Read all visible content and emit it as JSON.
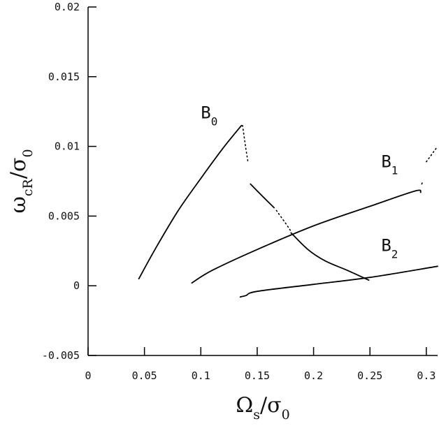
{
  "chart_data": {
    "type": "line",
    "title": "",
    "xlabel": {
      "main": "Ω",
      "sub": "s",
      "slash": "/",
      "denom": "σ",
      "denom_sub": "0"
    },
    "ylabel": {
      "main": "ω",
      "sub": "cR",
      "slash": "/",
      "denom": "σ",
      "denom_sub": "0"
    },
    "xlim": [
      0,
      0.31
    ],
    "ylim": [
      -0.005,
      0.02
    ],
    "xticks": [
      0,
      0.05,
      0.1,
      0.15,
      0.2,
      0.25,
      0.3
    ],
    "xtick_labels": [
      "0",
      "0.05",
      "0.1",
      "0.15",
      "0.2",
      "0.25",
      "0.3"
    ],
    "yticks": [
      -0.005,
      0,
      0.005,
      0.01,
      0.015,
      0.02
    ],
    "ytick_labels": [
      "-0.005",
      "0",
      "0.005",
      "0.01",
      "0.015",
      "0.02"
    ],
    "grid": false,
    "legend": "none",
    "annotations": [
      {
        "text": "B",
        "sub": "0",
        "x": 0.1,
        "y": 0.012
      },
      {
        "text": "B",
        "sub": "1",
        "x": 0.26,
        "y": 0.0085
      },
      {
        "text": "B",
        "sub": "2",
        "x": 0.26,
        "y": 0.0025
      }
    ],
    "series": [
      {
        "segments": [
          {
            "style": "solid",
            "points": [
              [
                0.045,
                0.0005
              ],
              [
                0.06,
                0.0027
              ],
              [
                0.08,
                0.0054
              ],
              [
                0.1,
                0.0077
              ],
              [
                0.12,
                0.0099
              ],
              [
                0.136,
                0.0115
              ]
            ]
          },
          {
            "style": "dotted",
            "points": [
              [
                0.137,
                0.0115
              ],
              [
                0.14,
                0.0098
              ],
              [
                0.142,
                0.0088
              ]
            ]
          },
          {
            "style": "solid",
            "points": [
              [
                0.144,
                0.0073
              ],
              [
                0.155,
                0.0064
              ],
              [
                0.165,
                0.0056
              ]
            ]
          },
          {
            "style": "dotted",
            "points": [
              [
                0.167,
                0.0054
              ],
              [
                0.175,
                0.0045
              ],
              [
                0.18,
                0.0039
              ]
            ]
          },
          {
            "style": "solid",
            "points": [
              [
                0.18,
                0.0038
              ],
              [
                0.195,
                0.0026
              ],
              [
                0.21,
                0.0018
              ],
              [
                0.23,
                0.0011
              ],
              [
                0.249,
                0.0004
              ]
            ]
          }
        ]
      },
      {
        "segments": [
          {
            "style": "solid",
            "points": [
              [
                0.092,
                0.0002
              ],
              [
                0.11,
                0.0011
              ],
              [
                0.15,
                0.0026
              ],
              [
                0.2,
                0.0043
              ],
              [
                0.25,
                0.0057
              ],
              [
                0.29,
                0.0068
              ],
              [
                0.295,
                0.0067
              ]
            ]
          },
          {
            "style": "dotted",
            "points": [
              [
                0.296,
                0.0073
              ],
              [
                0.297,
                0.0075
              ]
            ]
          },
          {
            "style": "dotted",
            "points": [
              [
                0.3,
                0.0089
              ],
              [
                0.31,
                0.01
              ]
            ]
          }
        ]
      },
      {
        "segments": [
          {
            "style": "solid",
            "points": [
              [
                0.135,
                -0.0008
              ],
              [
                0.14,
                -0.0007
              ],
              [
                0.15,
                -0.0004
              ],
              [
                0.2,
                0.0001
              ],
              [
                0.25,
                0.0006
              ],
              [
                0.31,
                0.0014
              ]
            ]
          }
        ]
      }
    ]
  }
}
